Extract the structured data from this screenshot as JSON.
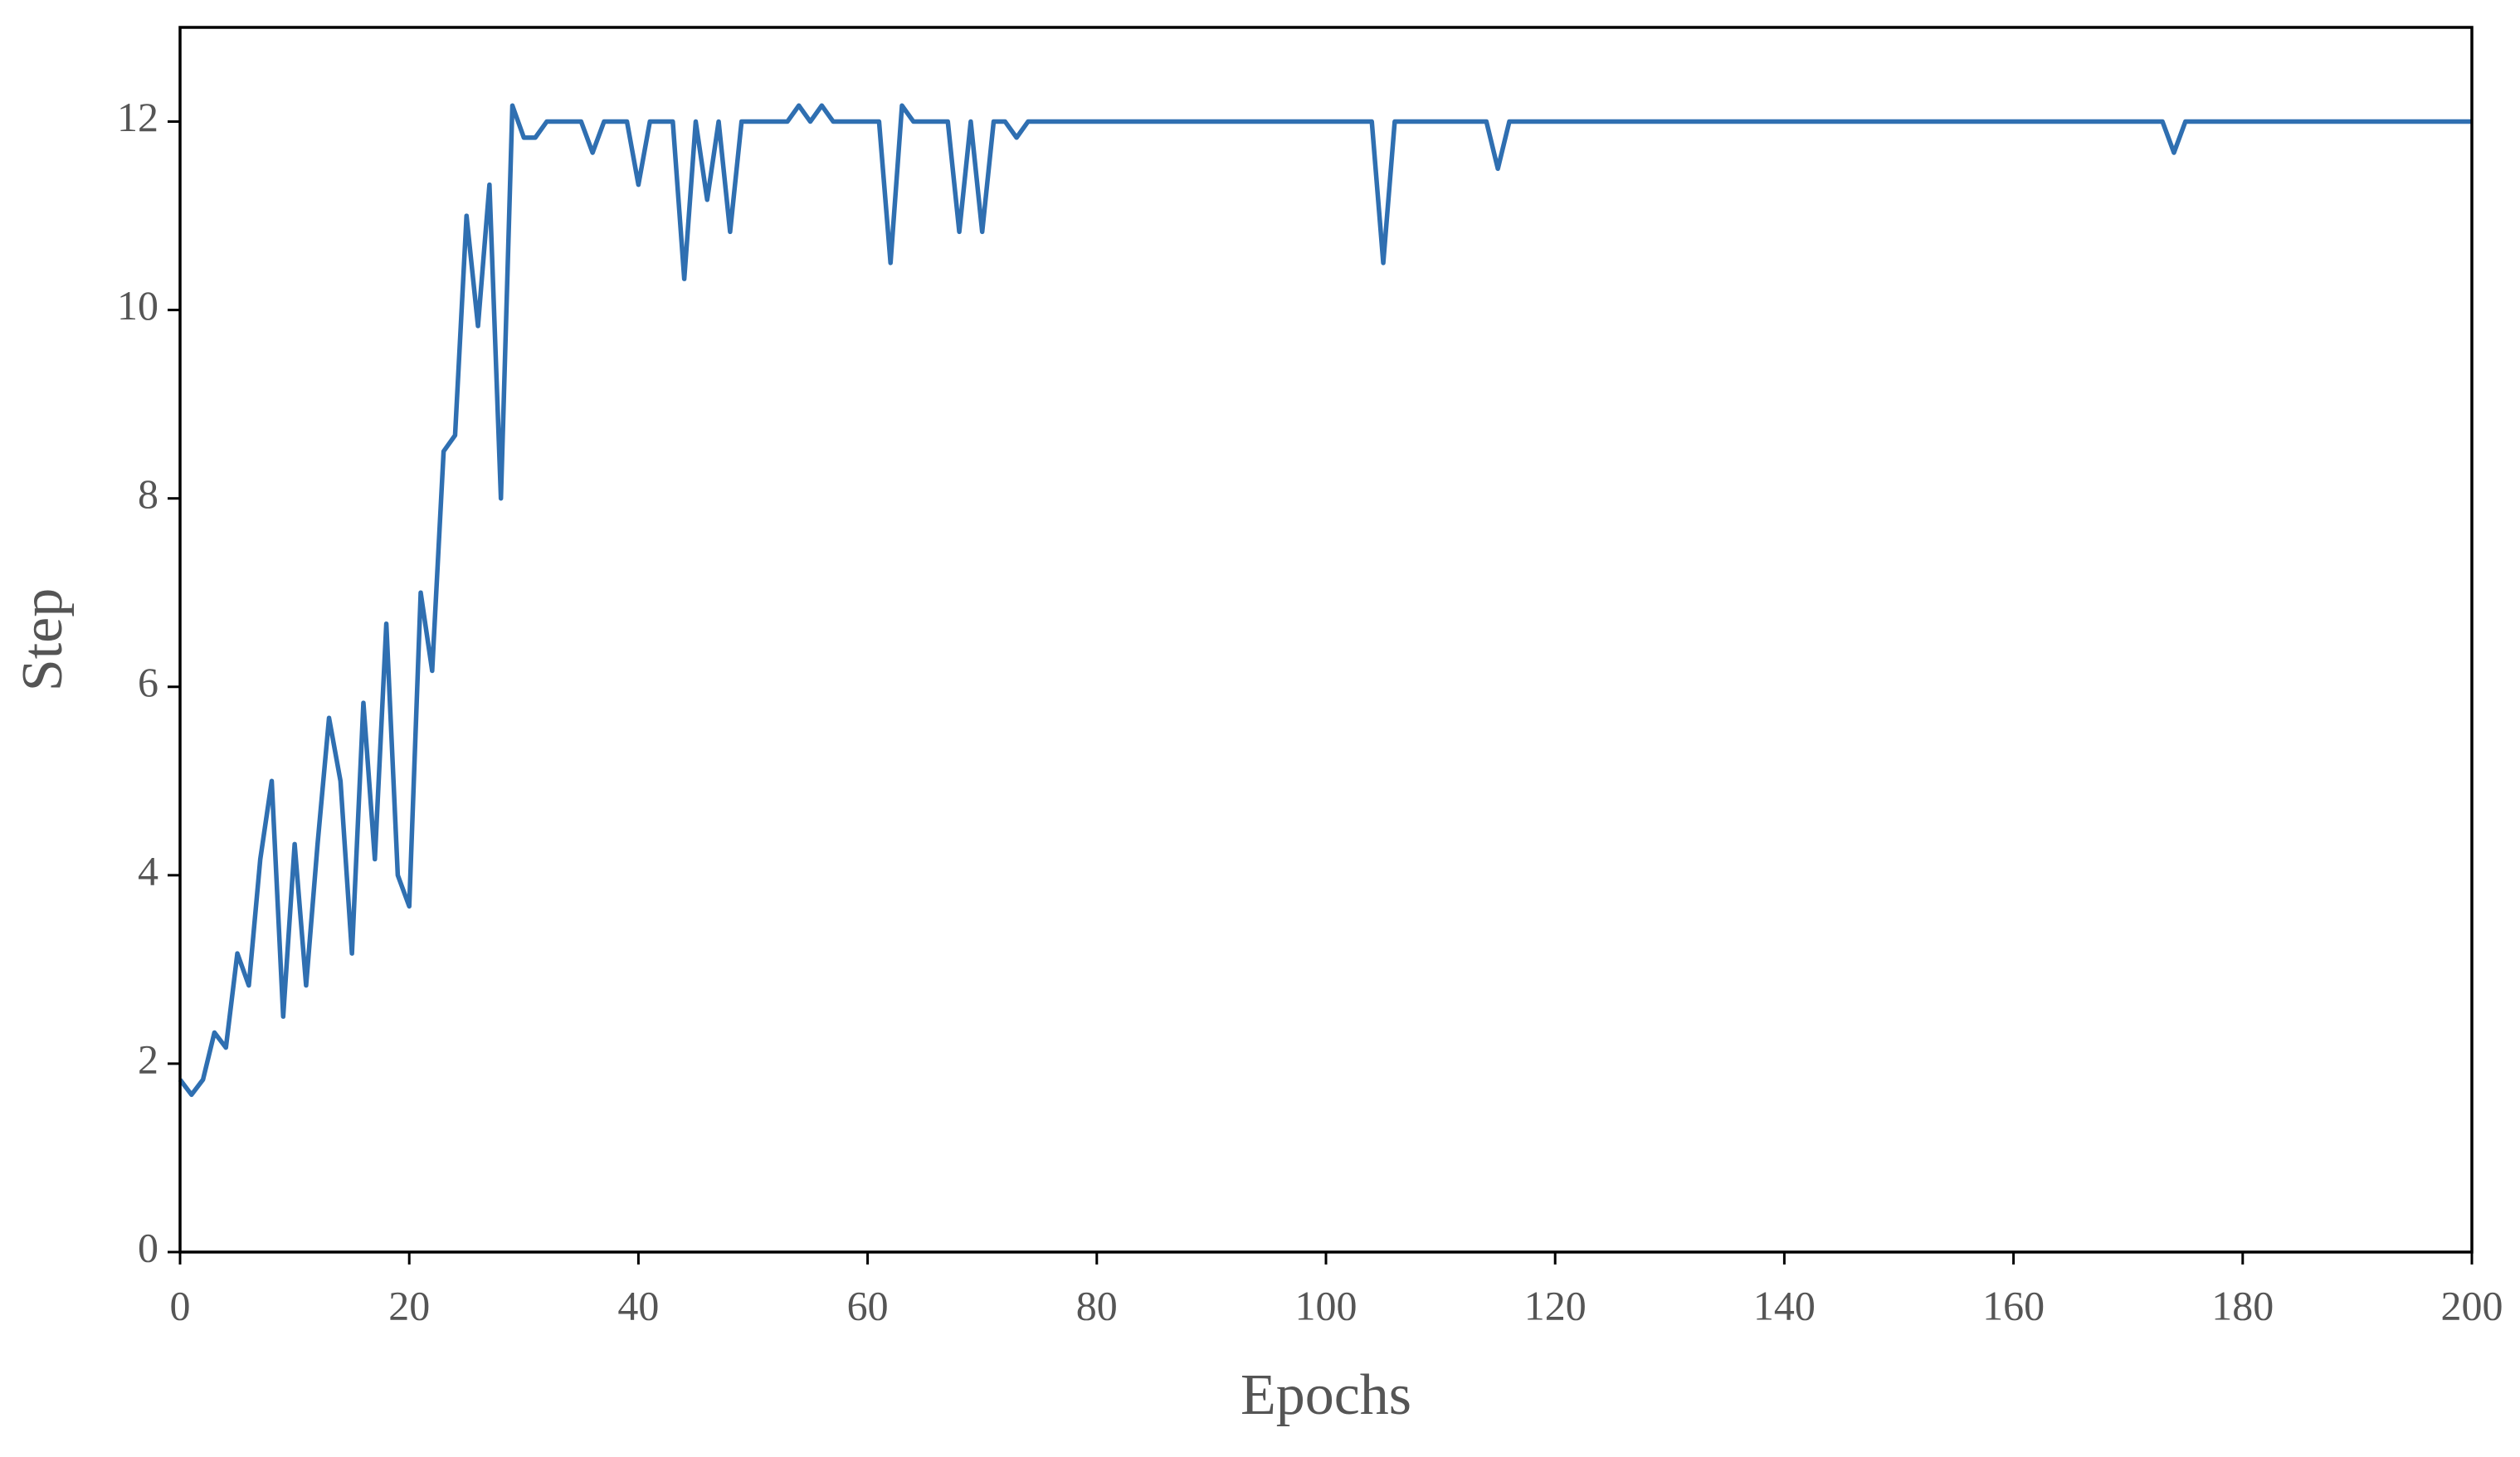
{
  "chart_data": {
    "type": "line",
    "x_label": "Epochs",
    "y_label": "Step",
    "x": [
      0,
      1,
      2,
      3,
      4,
      5,
      6,
      7,
      8,
      9,
      10,
      11,
      12,
      13,
      14,
      15,
      16,
      17,
      18,
      19,
      20,
      21,
      22,
      23,
      24,
      25,
      26,
      27,
      28,
      29,
      30,
      31,
      32,
      33,
      34,
      35,
      36,
      37,
      38,
      39,
      40,
      41,
      42,
      43,
      44,
      45,
      46,
      47,
      48,
      49,
      50,
      51,
      52,
      53,
      54,
      55,
      56,
      57,
      58,
      59,
      60,
      61,
      62,
      63,
      64,
      65,
      66,
      67,
      68,
      69,
      70,
      71,
      72,
      73,
      74,
      75,
      76,
      77,
      78,
      79,
      80,
      81,
      82,
      83,
      84,
      85,
      86,
      87,
      88,
      89,
      90,
      91,
      92,
      93,
      94,
      95,
      96,
      97,
      98,
      99,
      100,
      101,
      102,
      103,
      104,
      105,
      106,
      107,
      108,
      109,
      110,
      111,
      112,
      113,
      114,
      115,
      116,
      117,
      118,
      119,
      120,
      121,
      122,
      123,
      124,
      125,
      126,
      127,
      128,
      129,
      130,
      131,
      132,
      133,
      134,
      135,
      136,
      137,
      138,
      139,
      140,
      141,
      142,
      143,
      144,
      145,
      146,
      147,
      148,
      149,
      150,
      151,
      152,
      153,
      154,
      155,
      156,
      157,
      158,
      159,
      160,
      161,
      162,
      163,
      164,
      165,
      166,
      167,
      168,
      169,
      170,
      171,
      172,
      173,
      174,
      175,
      176,
      177,
      178,
      179,
      180,
      181,
      182,
      183,
      184,
      185,
      186,
      187,
      188,
      189,
      190,
      191,
      192,
      193,
      194,
      195,
      196,
      197,
      198,
      199,
      200
    ],
    "series": [
      {
        "color": "#2f6fb1",
        "values": [
          1.83,
          1.67,
          1.83,
          2.33,
          2.17,
          3.17,
          2.83,
          4.17,
          5,
          2.5,
          4.33,
          2.83,
          4.33,
          5.67,
          5,
          3.17,
          5.83,
          4.17,
          6.67,
          4,
          3.67,
          7,
          6.17,
          8.5,
          8.67,
          11,
          9.83,
          11.33,
          8,
          12.17,
          11.83,
          11.83,
          12,
          12,
          12,
          12,
          11.67,
          12,
          12,
          12,
          11.33,
          12,
          12,
          12,
          10.33,
          12,
          11.17,
          12,
          10.83,
          12,
          12,
          12,
          12,
          12,
          12.17,
          12,
          12.17,
          12,
          12,
          12,
          12,
          12,
          10.5,
          12.17,
          12,
          12,
          12,
          12,
          10.83,
          12,
          10.83,
          12,
          12,
          11.83,
          12,
          12,
          12,
          12,
          12,
          12,
          12,
          12,
          12,
          12,
          12,
          12,
          12,
          12,
          12,
          12,
          12,
          12,
          12,
          12,
          12,
          12,
          12,
          12,
          12,
          12,
          12,
          12,
          12,
          12,
          12,
          10.5,
          12,
          12,
          12,
          12,
          12,
          12,
          12,
          12,
          12,
          11.5,
          12,
          12,
          12,
          12,
          12,
          12,
          12,
          12,
          12,
          12,
          12,
          12,
          12,
          12,
          12,
          12,
          12,
          12,
          12,
          12,
          12,
          12,
          12,
          12,
          12,
          12,
          12,
          12,
          12,
          12,
          12,
          12,
          12,
          12,
          12,
          12,
          12,
          12,
          12,
          12,
          12,
          12,
          12,
          12,
          12,
          12,
          12,
          12,
          12,
          12,
          12,
          12,
          12,
          12.0,
          12,
          12,
          12,
          12,
          11.67,
          12,
          12,
          12,
          12,
          12,
          12,
          12,
          12,
          12,
          12,
          12,
          12,
          12,
          12,
          12,
          12,
          12,
          12,
          12,
          12,
          12,
          12,
          12,
          12,
          12,
          12
        ]
      }
    ],
    "xlim": [
      0,
      200
    ],
    "xticks": [
      0,
      20,
      40,
      60,
      80,
      100,
      120,
      140,
      160,
      180,
      200
    ],
    "ylim": [
      0,
      13
    ],
    "yticks": [
      0,
      2,
      4,
      6,
      8,
      10,
      12
    ]
  }
}
